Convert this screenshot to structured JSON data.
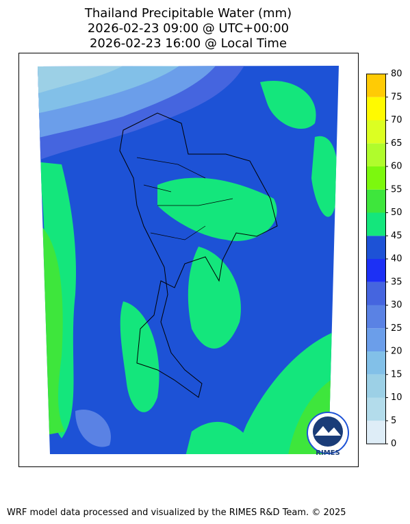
{
  "header": {
    "title_lines": [
      "Thailand Precipitable Water (mm)",
      "2026-02-23 09:00 @ UTC+00:00",
      "2026-02-23 16:00 @ Local Time"
    ]
  },
  "colorbar": {
    "ticks": [
      0,
      5,
      10,
      15,
      20,
      25,
      30,
      35,
      40,
      45,
      50,
      55,
      60,
      65,
      70,
      75,
      80
    ],
    "colors": [
      "#deedf7",
      "#b3dceb",
      "#9cd0e6",
      "#82c0e8",
      "#6b9eea",
      "#5a82e4",
      "#4565df",
      "#1c30f5",
      "#1d52d6",
      "#14e67c",
      "#3ee63c",
      "#7cf80e",
      "#b0fc2c",
      "#dcff22",
      "#fffa00",
      "#ffcb05"
    ]
  },
  "logo": {
    "text": "RIMES"
  },
  "footer": {
    "text": "WRF model data processed and visualized by the RIMES R&D Team. © 2025"
  }
}
